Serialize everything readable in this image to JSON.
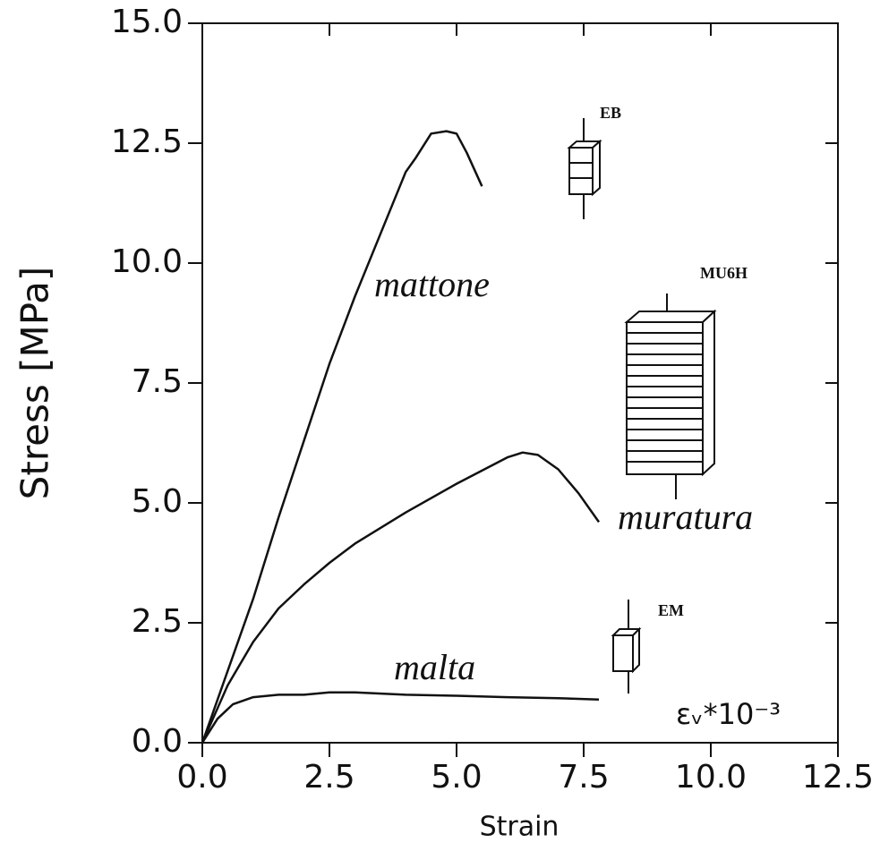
{
  "chart_data": {
    "type": "line",
    "x_label": "Strain",
    "y_label": "Stress [MPa]",
    "xlim": [
      0,
      12.5
    ],
    "ylim": [
      0,
      15
    ],
    "xticks": [
      {
        "value": 0,
        "label": "0.0"
      },
      {
        "value": 2.5,
        "label": "2.5"
      },
      {
        "value": 5,
        "label": "5.0"
      },
      {
        "value": 7.5,
        "label": "7.5"
      },
      {
        "value": 10,
        "label": "10.0"
      },
      {
        "value": 12.5,
        "label": "12.5"
      }
    ],
    "yticks": [
      {
        "value": 0,
        "label": "0.0"
      },
      {
        "value": 2.5,
        "label": "2.5"
      },
      {
        "value": 5,
        "label": "5.0"
      },
      {
        "value": 7.5,
        "label": "7.5"
      },
      {
        "value": 10,
        "label": "10.0"
      },
      {
        "value": 12.5,
        "label": "12.5"
      },
      {
        "value": 15,
        "label": "15.0"
      }
    ],
    "grid": false,
    "series": [
      {
        "name": "mattone",
        "color": "#111111",
        "x": [
          0,
          0.5,
          1,
          1.5,
          2,
          2.5,
          3,
          3.5,
          4,
          4.2,
          4.5,
          4.8,
          5,
          5.2,
          5.5
        ],
        "values": [
          0,
          1.5,
          3,
          4.7,
          6.3,
          7.9,
          9.3,
          10.6,
          11.9,
          12.2,
          12.7,
          12.75,
          12.7,
          12.3,
          11.6
        ]
      },
      {
        "name": "muratura",
        "color": "#111111",
        "x": [
          0,
          0.5,
          1,
          1.5,
          2,
          2.5,
          3,
          4,
          5,
          6,
          6.3,
          6.6,
          7,
          7.4,
          7.8
        ],
        "values": [
          0,
          1.2,
          2.1,
          2.8,
          3.3,
          3.75,
          4.15,
          4.8,
          5.4,
          5.95,
          6.05,
          6,
          5.7,
          5.2,
          4.6
        ]
      },
      {
        "name": "malta",
        "color": "#111111",
        "x": [
          0,
          0.3,
          0.6,
          1,
          1.5,
          2,
          2.5,
          3,
          4,
          5,
          6,
          7,
          7.8
        ],
        "values": [
          0,
          0.5,
          0.8,
          0.95,
          1,
          1,
          1.05,
          1.05,
          1,
          0.98,
          0.95,
          0.93,
          0.9
        ]
      }
    ],
    "annotations": [
      "EB",
      "MU6H",
      "EM",
      "εᵥ*10⁻³"
    ]
  }
}
